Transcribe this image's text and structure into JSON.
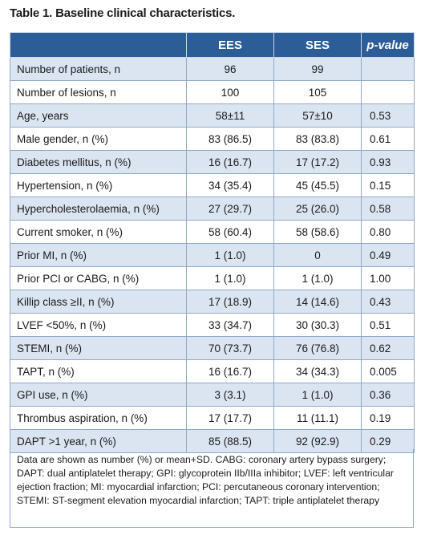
{
  "caption": "Table 1. Baseline clinical characteristics.",
  "table": {
    "headers": [
      "",
      "EES",
      "SES",
      "p-value"
    ],
    "rows": [
      {
        "label": "Number of patients, n",
        "ees": "96",
        "ses": "99",
        "p": ""
      },
      {
        "label": "Number of lesions, n",
        "ees": "100",
        "ses": "105",
        "p": ""
      },
      {
        "label": "Age, years",
        "ees": "58±11",
        "ses": "57±10",
        "p": "0.53"
      },
      {
        "label": "Male gender, n (%)",
        "ees": "83 (86.5)",
        "ses": "83 (83.8)",
        "p": "0.61"
      },
      {
        "label": "Diabetes mellitus, n (%)",
        "ees": "16 (16.7)",
        "ses": "17 (17.2)",
        "p": "0.93"
      },
      {
        "label": "Hypertension, n (%)",
        "ees": "34 (35.4)",
        "ses": "45 (45.5)",
        "p": "0.15"
      },
      {
        "label": "Hypercholesterolaemia, n (%)",
        "ees": "27 (29.7)",
        "ses": "25 (26.0)",
        "p": "0.58"
      },
      {
        "label": "Current smoker, n (%)",
        "ees": "58 (60.4)",
        "ses": "58 (58.6)",
        "p": "0.80"
      },
      {
        "label": "Prior MI, n (%)",
        "ees": "1 (1.0)",
        "ses": "0",
        "p": "0.49"
      },
      {
        "label": "Prior PCI or CABG, n (%)",
        "ees": "1 (1.0)",
        "ses": "1 (1.0)",
        "p": "1.00"
      },
      {
        "label": "Killip class ≥II, n (%)",
        "ees": "17 (18.9)",
        "ses": "14 (14.6)",
        "p": "0.43"
      },
      {
        "label": "LVEF <50%, n (%)",
        "ees": "33 (34.7)",
        "ses": "30 (30.3)",
        "p": "0.51"
      },
      {
        "label": "STEMI, n (%)",
        "ees": "70 (73.7)",
        "ses": "76 (76.8)",
        "p": "0.62"
      },
      {
        "label": "TAPT, n (%)",
        "ees": "16 (16.7)",
        "ses": "34 (34.3)",
        "p": "0.005"
      },
      {
        "label": "GPI use, n (%)",
        "ees": "3 (3.1)",
        "ses": "1 (1.0)",
        "p": "0.36"
      },
      {
        "label": "Thrombus aspiration, n (%)",
        "ees": "17 (17.7)",
        "ses": "11 (11.1)",
        "p": "0.19"
      },
      {
        "label": "DAPT >1 year, n (%)",
        "ees": "85 (88.5)",
        "ses": "92 (92.9)",
        "p": "0.29"
      }
    ]
  },
  "footnote": "Data are shown as number (%) or mean+SD. CABG: coronary artery bypass surgery; DAPT: dual antiplatelet therapy; GPI: glycoprotein IIb/IIIa inhibitor; LVEF: left ventricular ejection fraction; MI: myocardial infarction; PCI: percutaneous coronary intervention; STEMI: ST-segment elevation myocardial infarction; TAPT: triple antiplatelet therapy",
  "colors": {
    "header_bg": "#2d5d97",
    "shade_row": "#dbe5f1",
    "border": "#8fa9c8"
  }
}
